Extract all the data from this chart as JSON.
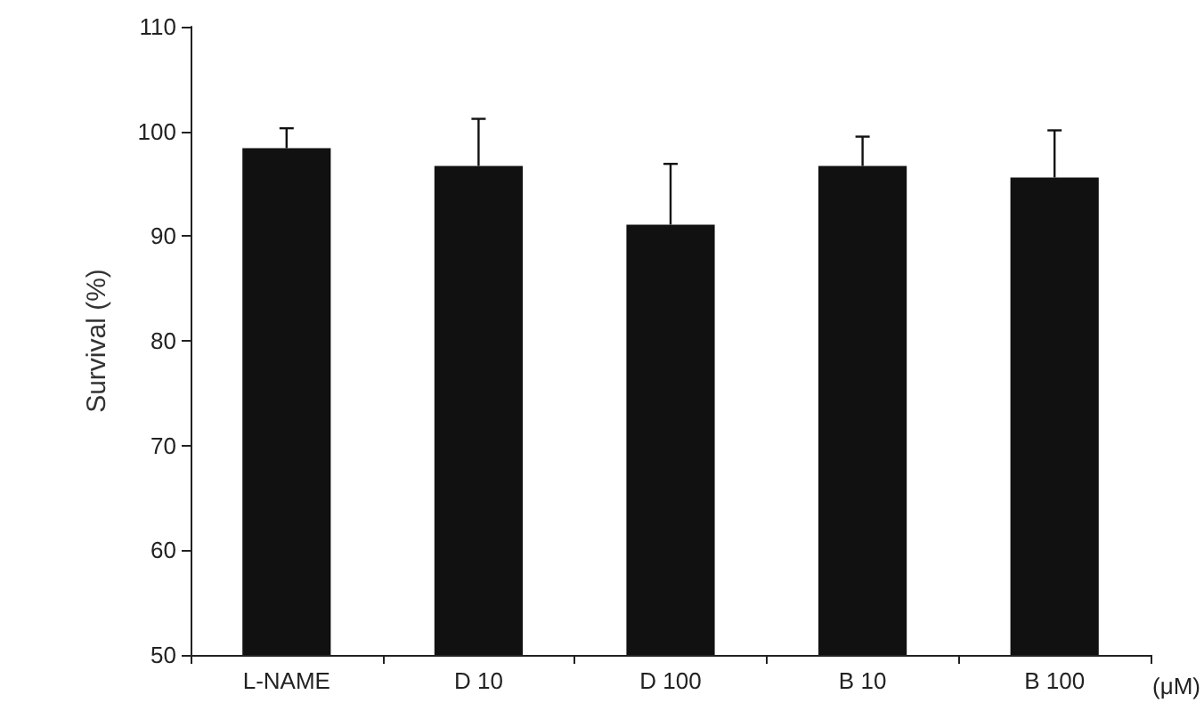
{
  "chart_data": {
    "type": "bar",
    "ylabel": "Survival (%)",
    "categories": [
      "L-NAME",
      "D 10",
      "D 100",
      "B 10",
      "B 100"
    ],
    "values": [
      98.4,
      96.7,
      91.1,
      96.7,
      95.6
    ],
    "errors": [
      [
        98.4,
        100.3
      ],
      [
        96.7,
        101.2
      ],
      [
        91.1,
        96.9
      ],
      [
        96.7,
        99.5
      ],
      [
        95.6,
        100.1
      ]
    ],
    "color": "#111111",
    "ylim": [
      50,
      110
    ],
    "yticks": [
      50,
      60,
      70,
      80,
      90,
      100,
      110
    ],
    "grid": false,
    "annotations": [
      "(μM)"
    ]
  }
}
